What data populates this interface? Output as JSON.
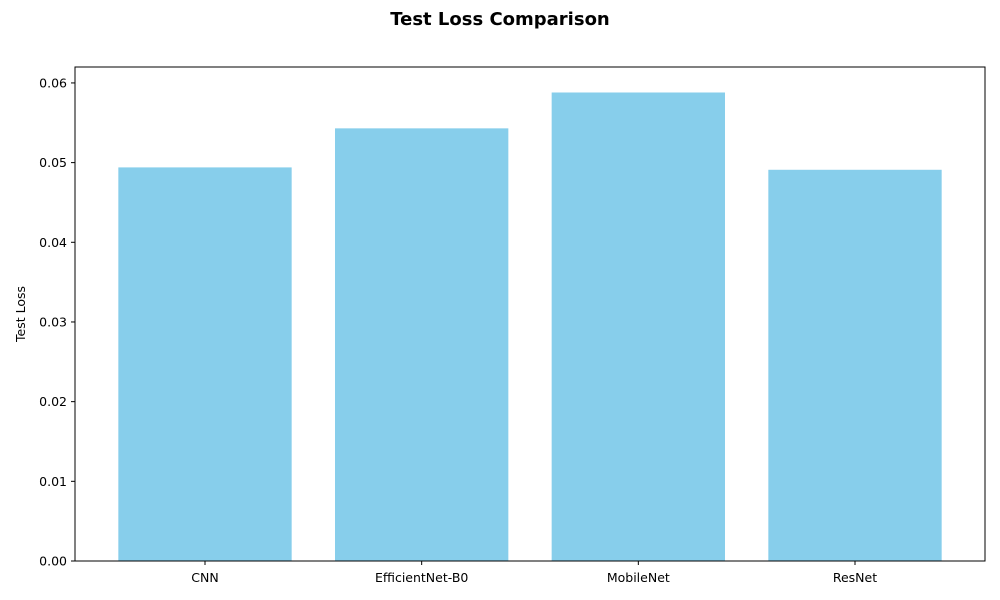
{
  "chart_data": {
    "type": "bar",
    "title": "Test Loss Comparison",
    "xlabel": "",
    "ylabel": "Test Loss",
    "categories": [
      "CNN",
      "EfficientNet-B0",
      "MobileNet",
      "ResNet"
    ],
    "values": [
      0.0494,
      0.0543,
      0.0588,
      0.0491
    ],
    "ylim": [
      0,
      0.062
    ],
    "yticks": [
      0.0,
      0.01,
      0.02,
      0.03,
      0.04,
      0.05,
      0.06
    ],
    "ytick_labels": [
      "0.00",
      "0.01",
      "0.02",
      "0.03",
      "0.04",
      "0.05",
      "0.06"
    ],
    "bar_color": "#87ceeb",
    "grid": false,
    "legend": false
  }
}
